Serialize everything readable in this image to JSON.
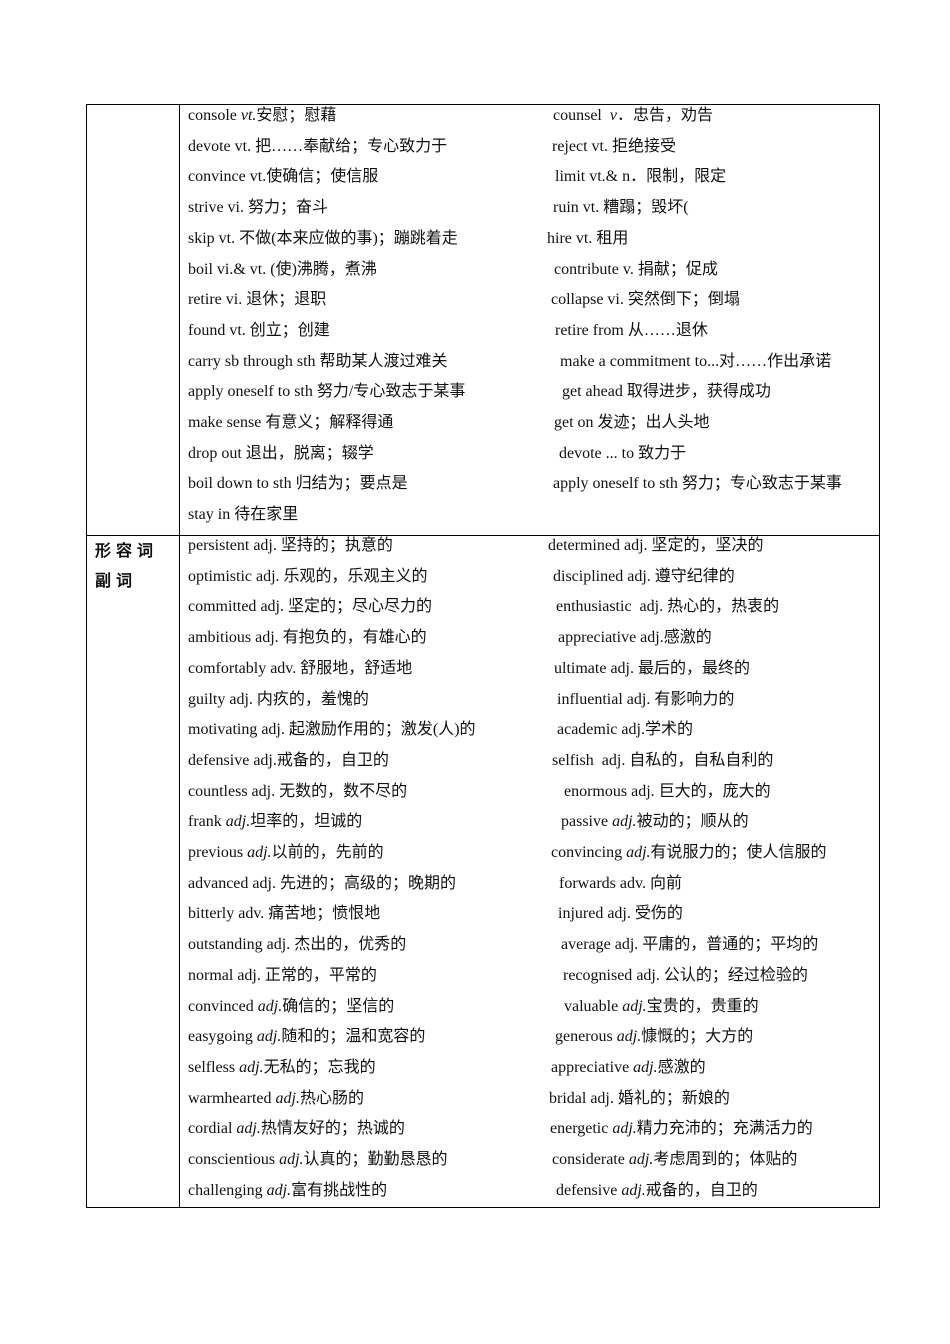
{
  "sections": [
    {
      "category": "",
      "rows": [
        [
          {
            "w": "console ",
            "p": "vt.",
            "i": true,
            "z": "安慰；慰藉"
          },
          {
            "w": "counsel  ",
            "p": "v",
            "i": true,
            "z": "．忠告，劝告"
          }
        ],
        [
          {
            "w": "devote ",
            "p": "vt. ",
            "z": "把……奉献给；专心致力于"
          },
          {
            "w": "reject ",
            "p": "vt. ",
            "z": "拒绝接受"
          }
        ],
        [
          {
            "w": "convince ",
            "p": "vt.",
            "z": "使确信；使信服"
          },
          {
            "w": "limit ",
            "p": "vt.& n．",
            "z": "限制，限定"
          }
        ],
        [
          {
            "w": "strive ",
            "p": "vi. ",
            "z": "努力；奋斗"
          },
          {
            "w": "ruin ",
            "p": "vt. ",
            "z": "糟蹋；毁坏("
          }
        ],
        [
          {
            "w": "skip ",
            "p": "vt. ",
            "z": "不做(本来应做的事)；蹦跳着走"
          },
          {
            "w": "hire ",
            "p": "vt. ",
            "z": "租用"
          }
        ],
        [
          {
            "w": "boil ",
            "p": "vi.& vt. ",
            "z": "(使)沸腾，煮沸"
          },
          {
            "w": "contribute ",
            "p": "v. ",
            "z": "捐献；促成"
          }
        ],
        [
          {
            "w": "retire ",
            "p": "vi. ",
            "z": "退休；退职"
          },
          {
            "w": "collapse ",
            "p": "vi. ",
            "z": "突然倒下；倒塌"
          }
        ],
        [
          {
            "w": "found ",
            "p": "vt. ",
            "z": "创立；创建"
          },
          {
            "w": "retire from ",
            "p": "",
            "z": "从……退休"
          }
        ],
        [
          {
            "w": "carry sb through sth ",
            "p": "",
            "z": "帮助某人渡过难关"
          },
          {
            "w": "make a commitment to...",
            "p": "",
            "z": "对……作出承诺"
          }
        ],
        [
          {
            "w": "apply oneself to sth ",
            "p": "",
            "z": "努力/专心致志于某事"
          },
          {
            "w": "get ahead ",
            "p": "",
            "z": "取得进步，获得成功"
          }
        ],
        [
          {
            "w": "make sense ",
            "p": "",
            "z": "有意义；解释得通"
          },
          {
            "w": "get on ",
            "p": "",
            "z": "发迹；出人头地"
          }
        ],
        [
          {
            "w": "drop out ",
            "p": "",
            "z": "退出，脱离；辍学"
          },
          {
            "w": "devote ... to ",
            "p": "",
            "z": "致力于"
          }
        ],
        [
          {
            "w": "boil down to sth ",
            "p": "",
            "z": "归结为；要点是"
          },
          {
            "w": "apply oneself to sth ",
            "p": "",
            "z": "努力；专心致志于某事"
          }
        ],
        [
          {
            "w": "stay in ",
            "p": "",
            "z": "待在家里"
          }
        ]
      ]
    },
    {
      "category": "形容词副词",
      "rows": [
        [
          {
            "w": "persistent ",
            "p": "adj. ",
            "z": "坚持的；执意的"
          },
          {
            "w": "determined ",
            "p": "adj. ",
            "z": "坚定的，坚决的"
          }
        ],
        [
          {
            "w": "optimistic ",
            "p": "adj. ",
            "z": "乐观的，乐观主义的"
          },
          {
            "w": "disciplined ",
            "p": "adj. ",
            "z": "遵守纪律的"
          }
        ],
        [
          {
            "w": "committed ",
            "p": "adj. ",
            "z": "坚定的；尽心尽力的"
          },
          {
            "w": "enthusiastic  ",
            "p": "adj. ",
            "z": "热心的，热衷的"
          }
        ],
        [
          {
            "w": "ambitious ",
            "p": "adj. ",
            "z": "有抱负的，有雄心的"
          },
          {
            "w": "appreciative ",
            "p": "adj.",
            "z": "感激的"
          }
        ],
        [
          {
            "w": "comfortably ",
            "p": "adv. ",
            "z": "舒服地，舒适地"
          },
          {
            "w": "ultimate ",
            "p": "adj. ",
            "z": "最后的，最终的"
          }
        ],
        [
          {
            "w": "guilty ",
            "p": "adj. ",
            "z": "内疚的，羞愧的"
          },
          {
            "w": "influential ",
            "p": "adj. ",
            "z": "有影响力的"
          }
        ],
        [
          {
            "w": "motivating ",
            "p": "adj. ",
            "z": "起激励作用的；激发(人)的"
          },
          {
            "w": "academic ",
            "p": "adj.",
            "z": "学术的"
          }
        ],
        [
          {
            "w": "defensive ",
            "p": "adj.",
            "z": "戒备的，自卫的"
          },
          {
            "w": "selfish  ",
            "p": "adj. ",
            "z": "自私的，自私自利的"
          }
        ],
        [
          {
            "w": "countless ",
            "p": "adj. ",
            "z": "无数的，数不尽的"
          },
          {
            "w": "enormous ",
            "p": "adj. ",
            "z": "巨大的，庞大的"
          }
        ],
        [
          {
            "w": "frank ",
            "p": "adj.",
            "i": true,
            "z": "坦率的，坦诚的"
          },
          {
            "w": "passive ",
            "p": "adj.",
            "i": true,
            "z": "被动的；顺从的"
          }
        ],
        [
          {
            "w": "previous ",
            "p": "adj.",
            "i": true,
            "z": "以前的，先前的"
          },
          {
            "w": "convincing ",
            "p": "adj.",
            "i": true,
            "z": "有说服力的；使人信服的"
          }
        ],
        [
          {
            "w": "advanced ",
            "p": "adj. ",
            "z": "先进的；高级的；晚期的"
          },
          {
            "w": "forwards ",
            "p": "adv. ",
            "z": "向前"
          }
        ],
        [
          {
            "w": "bitterly ",
            "p": "adv. ",
            "z": "痛苦地；愤恨地"
          },
          {
            "w": "injured ",
            "p": "adj. ",
            "z": "受伤的"
          }
        ],
        [
          {
            "w": "outstanding ",
            "p": "adj. ",
            "z": "杰出的，优秀的"
          },
          {
            "w": "average ",
            "p": "adj. ",
            "z": "平庸的，普通的；平均的"
          }
        ],
        [
          {
            "w": "normal ",
            "p": "adj. ",
            "z": "正常的，平常的"
          },
          {
            "w": "recognised ",
            "p": "adj. ",
            "z": "公认的；经过检验的"
          }
        ],
        [
          {
            "w": "convinced ",
            "p": "adj.",
            "i": true,
            "z": "确信的；坚信的"
          },
          {
            "w": "valuable ",
            "p": "adj.",
            "i": true,
            "z": "宝贵的，贵重的"
          }
        ],
        [
          {
            "w": "easygoing ",
            "p": "adj.",
            "i": true,
            "z": "随和的；温和宽容的"
          },
          {
            "w": "generous ",
            "p": "adj.",
            "i": true,
            "z": "慷慨的；大方的"
          }
        ],
        [
          {
            "w": "selfless ",
            "p": "adj.",
            "i": true,
            "z": "无私的；忘我的"
          },
          {
            "w": "appreciative ",
            "p": "adj.",
            "i": true,
            "z": "感激的"
          }
        ],
        [
          {
            "w": "warmhearted ",
            "p": "adj.",
            "i": true,
            "z": "热心肠的"
          },
          {
            "w": "bridal ",
            "p": "adj. ",
            "z": "婚礼的；新娘的"
          }
        ],
        [
          {
            "w": "cordial ",
            "p": "adj.",
            "i": true,
            "z": "热情友好的；热诚的"
          },
          {
            "w": "energetic ",
            "p": "adj.",
            "i": true,
            "z": "精力充沛的；充满活力的"
          }
        ],
        [
          {
            "w": "conscientious ",
            "p": "adj.",
            "i": true,
            "z": "认真的；勤勤恳恳的"
          },
          {
            "w": "considerate ",
            "p": "adj.",
            "i": true,
            "z": "考虑周到的；体贴的"
          }
        ],
        [
          {
            "w": "challenging ",
            "p": "adj.",
            "i": true,
            "z": "富有挑战性的"
          },
          {
            "w": "defensive ",
            "p": "adj.",
            "i": true,
            "z": "戒备的，自卫的"
          }
        ]
      ]
    }
  ]
}
